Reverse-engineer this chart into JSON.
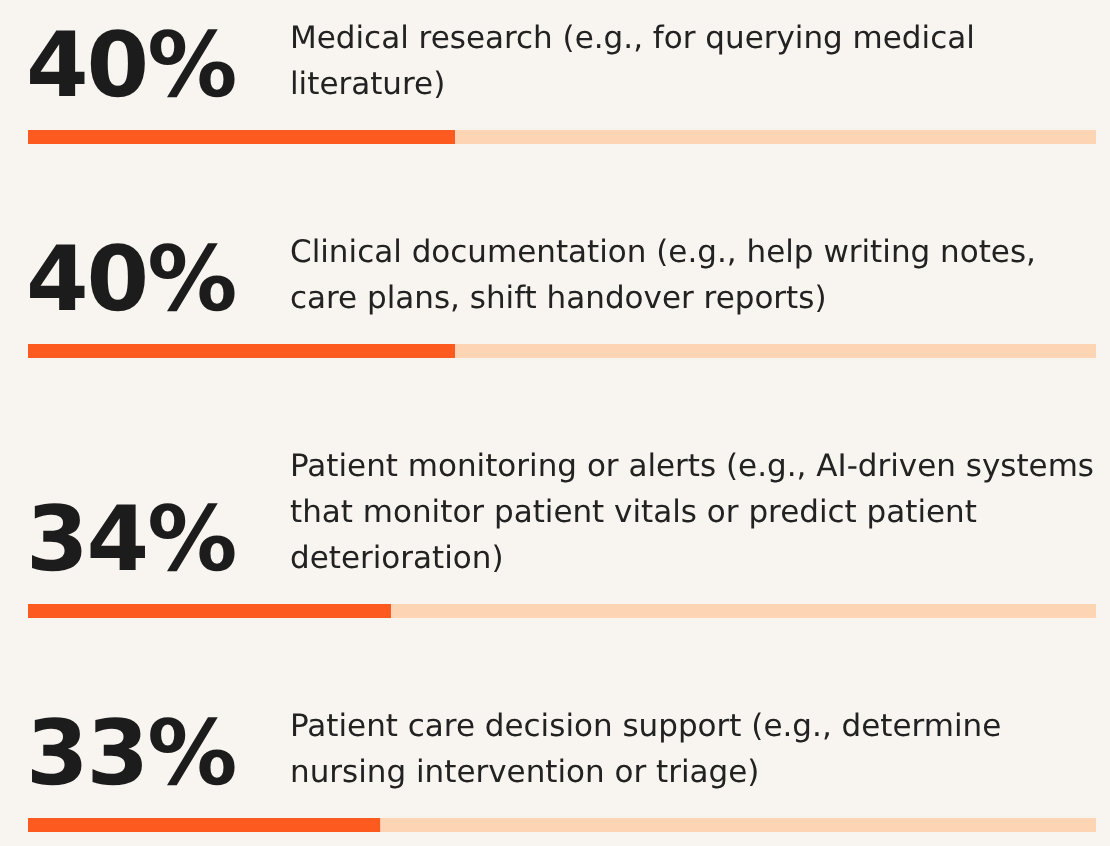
{
  "chart_data": {
    "type": "bar",
    "orientation": "horizontal",
    "stacked": true,
    "categories": [
      "Medical research (e.g., for querying medical literature)",
      "Clinical documentation (e.g., help writing notes, care plans, shift handover reports)",
      "Patient monitoring or alerts (e.g., AI-driven systems that monitor patient vitals or predict patient deterioration)",
      "Patient care decision support (e.g., determine nursing intervention or triage)"
    ],
    "xlim": [
      0,
      100
    ],
    "series": [
      {
        "color": "#fc5a1e",
        "values": [
          40,
          40,
          34,
          33
        ],
        "value_labels": [
          "40%",
          "40%",
          "34%",
          "33%"
        ]
      },
      {
        "color": "#fdd5b4",
        "values": [
          60,
          60,
          66,
          67
        ]
      }
    ],
    "tick_labels": "y"
  }
}
